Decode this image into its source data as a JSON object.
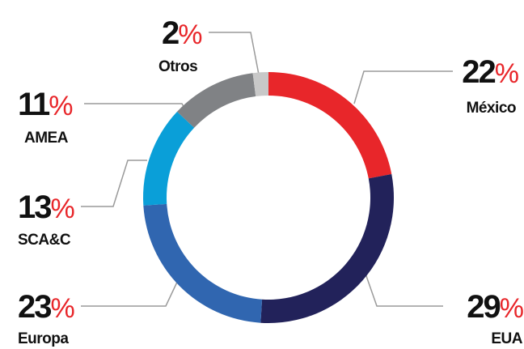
{
  "chart_data": {
    "type": "donut",
    "categories": [
      "México",
      "EUA",
      "Europa",
      "SCA&C",
      "AMEA",
      "Otros"
    ],
    "values": [
      22,
      29,
      23,
      13,
      11,
      2
    ],
    "unit": "%",
    "colors": [
      "#e8262a",
      "#22225a",
      "#3066b0",
      "#0a9fd8",
      "#808285",
      "#c8c8c8"
    ]
  }
}
